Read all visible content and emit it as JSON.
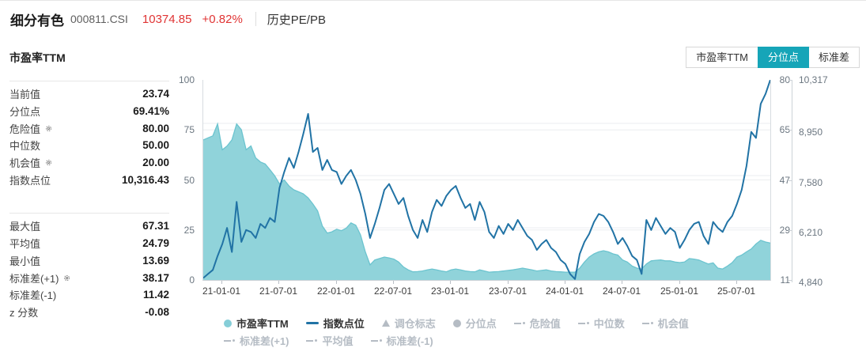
{
  "header": {
    "title": "细分有色",
    "code": "000811.CSI",
    "price": "10374.85",
    "change": "+0.82%",
    "nav_link": "历史PE/PB"
  },
  "panel": {
    "title": "市盈率TTM",
    "stats_primary": [
      {
        "label": "当前值",
        "value": "23.74",
        "gear": false
      },
      {
        "label": "分位点",
        "value": "69.41%",
        "gear": false
      },
      {
        "label": "危险值",
        "value": "80.00",
        "gear": true
      },
      {
        "label": "中位数",
        "value": "50.00",
        "gear": false
      },
      {
        "label": "机会值",
        "value": "20.00",
        "gear": true
      },
      {
        "label": "指数点位",
        "value": "10,316.43",
        "gear": false
      }
    ],
    "stats_secondary": [
      {
        "label": "最大值",
        "value": "67.31",
        "gear": false
      },
      {
        "label": "平均值",
        "value": "24.79",
        "gear": false
      },
      {
        "label": "最小值",
        "value": "13.69",
        "gear": false
      },
      {
        "label": "标准差(+1)",
        "value": "38.17",
        "gear": true
      },
      {
        "label": "标准差(-1)",
        "value": "11.42",
        "gear": false
      },
      {
        "label": "z 分数",
        "value": "-0.08",
        "gear": false
      }
    ]
  },
  "toolbar": {
    "tabs": [
      {
        "label": "市盈率TTM",
        "active": false
      },
      {
        "label": "分位点",
        "active": true
      },
      {
        "label": "标准差",
        "active": false
      }
    ]
  },
  "colors": {
    "accent_teal": "#16a5b8",
    "area_fill": "#90d3da",
    "area_edge": "#6cc4cf",
    "line_blue": "#2173a5",
    "negative_red": "#e03434",
    "inactive_gray": "#b5bcc4"
  },
  "chart_data": {
    "type": "line+area",
    "title": "市盈率TTM 分位点走势",
    "x_start": "2020-11-01",
    "points_per_month": 2,
    "x_ticks": [
      {
        "label": "21-01-01",
        "month_offset": 2
      },
      {
        "label": "21-07-01",
        "month_offset": 8
      },
      {
        "label": "22-01-01",
        "month_offset": 14
      },
      {
        "label": "22-07-01",
        "month_offset": 20
      },
      {
        "label": "23-01-01",
        "month_offset": 26
      },
      {
        "label": "23-07-01",
        "month_offset": 32
      },
      {
        "label": "24-01-01",
        "month_offset": 38
      },
      {
        "label": "24-07-01",
        "month_offset": 44
      },
      {
        "label": "25-01-01",
        "month_offset": 50
      },
      {
        "label": "25-07-01",
        "month_offset": 56
      }
    ],
    "left_axis": {
      "name": "分位点",
      "ticks": [
        "100",
        "75",
        "50",
        "25",
        "0"
      ],
      "min": 0,
      "max": 100,
      "grid_values": [
        25,
        50,
        75
      ]
    },
    "right_axis_pe": {
      "name": "市盈率",
      "ticks": [
        "80",
        "65",
        "47",
        "29",
        "11"
      ],
      "min": 11,
      "max": 80,
      "grid_values": [
        29,
        47,
        65
      ]
    },
    "right_axis_index": {
      "name": "指数点位",
      "ticks": [
        "10,317",
        "8,950",
        "7,580",
        "6,210",
        "4,840"
      ],
      "min": 4840,
      "max": 10317
    },
    "series": [
      {
        "name": "市盈率TTM",
        "type": "area",
        "axis": "right_axis_pe",
        "values": [
          59.3,
          60.0,
          60.7,
          64.8,
          55.9,
          57.2,
          59.3,
          64.8,
          62.8,
          55.9,
          57.2,
          53.1,
          51.7,
          51.0,
          49.0,
          46.9,
          44.1,
          45.5,
          43.4,
          42.1,
          41.4,
          40.7,
          39.3,
          37.2,
          34.8,
          29.6,
          27.2,
          27.6,
          28.5,
          28.0,
          28.9,
          30.7,
          29.9,
          26.6,
          20.7,
          16.2,
          17.9,
          18.4,
          18.9,
          18.6,
          18.2,
          17.2,
          15.5,
          14.5,
          13.8,
          13.9,
          14.1,
          14.5,
          14.8,
          14.5,
          14.1,
          13.8,
          14.5,
          14.8,
          14.5,
          14.1,
          13.9,
          13.8,
          14.5,
          14.1,
          13.7,
          13.8,
          13.9,
          14.1,
          14.3,
          14.5,
          14.8,
          15.1,
          14.8,
          14.5,
          14.1,
          14.3,
          14.5,
          14.1,
          13.9,
          13.8,
          13.7,
          13.7,
          13.69,
          15.1,
          17.2,
          18.9,
          20.0,
          20.7,
          21.1,
          20.7,
          20.0,
          19.6,
          17.9,
          17.2,
          15.8,
          15.1,
          14.8,
          16.5,
          17.6,
          17.8,
          17.9,
          17.6,
          17.6,
          17.2,
          17.0,
          17.2,
          18.4,
          18.2,
          17.9,
          17.2,
          16.5,
          16.9,
          15.1,
          14.8,
          15.8,
          17.0,
          18.9,
          19.6,
          20.7,
          21.7,
          23.4,
          24.7,
          24.1,
          23.74
        ]
      },
      {
        "name": "指数点位",
        "type": "line",
        "axis": "right_axis_index",
        "values": [
          4895,
          5004,
          5114,
          5497,
          5826,
          6264,
          5607,
          6976,
          5881,
          6209,
          6154,
          5990,
          6374,
          6264,
          6538,
          6428,
          7359,
          7798,
          8181,
          7907,
          8345,
          8838,
          9386,
          8345,
          8455,
          7852,
          8126,
          7852,
          7798,
          7469,
          7688,
          7852,
          7579,
          7195,
          6647,
          5990,
          6374,
          6812,
          7305,
          7469,
          7195,
          6921,
          7086,
          6593,
          6209,
          5990,
          6483,
          6154,
          6702,
          7031,
          6866,
          7140,
          7305,
          7414,
          7086,
          6812,
          6921,
          6483,
          6976,
          6702,
          6154,
          5990,
          6319,
          6100,
          6374,
          6209,
          6483,
          6264,
          6045,
          5935,
          5662,
          5826,
          5935,
          5716,
          5607,
          5388,
          5278,
          5004,
          4867,
          5552,
          5881,
          6100,
          6428,
          6647,
          6593,
          6428,
          6154,
          5826,
          5990,
          5771,
          5497,
          5388,
          5004,
          6483,
          6209,
          6538,
          6319,
          6100,
          6264,
          6154,
          5716,
          5935,
          6209,
          6374,
          6428,
          6045,
          5826,
          6428,
          6264,
          6154,
          6428,
          6593,
          6921,
          7305,
          7962,
          8893,
          8729,
          9660,
          9934,
          10316
        ]
      }
    ],
    "legend": {
      "row1": [
        {
          "label": "市盈率TTM",
          "marker": "circle",
          "active": true,
          "color": "#86ced8"
        },
        {
          "label": "指数点位",
          "marker": "line",
          "active": true,
          "color": "#2173a5"
        },
        {
          "label": "调仓标志",
          "marker": "triangle",
          "active": false
        },
        {
          "label": "分位点",
          "marker": "circle",
          "active": false,
          "color": "#b5bcc4"
        },
        {
          "label": "危险值",
          "marker": "dashdot",
          "active": false
        },
        {
          "label": "中位数",
          "marker": "dashdot",
          "active": false
        },
        {
          "label": "机会值",
          "marker": "dashdot",
          "active": false
        }
      ],
      "row2": [
        {
          "label": "标准差(+1)",
          "marker": "dashdot",
          "active": false
        },
        {
          "label": "平均值",
          "marker": "dashdot",
          "active": false
        },
        {
          "label": "标准差(-1)",
          "marker": "dashdot",
          "active": false
        }
      ]
    }
  }
}
